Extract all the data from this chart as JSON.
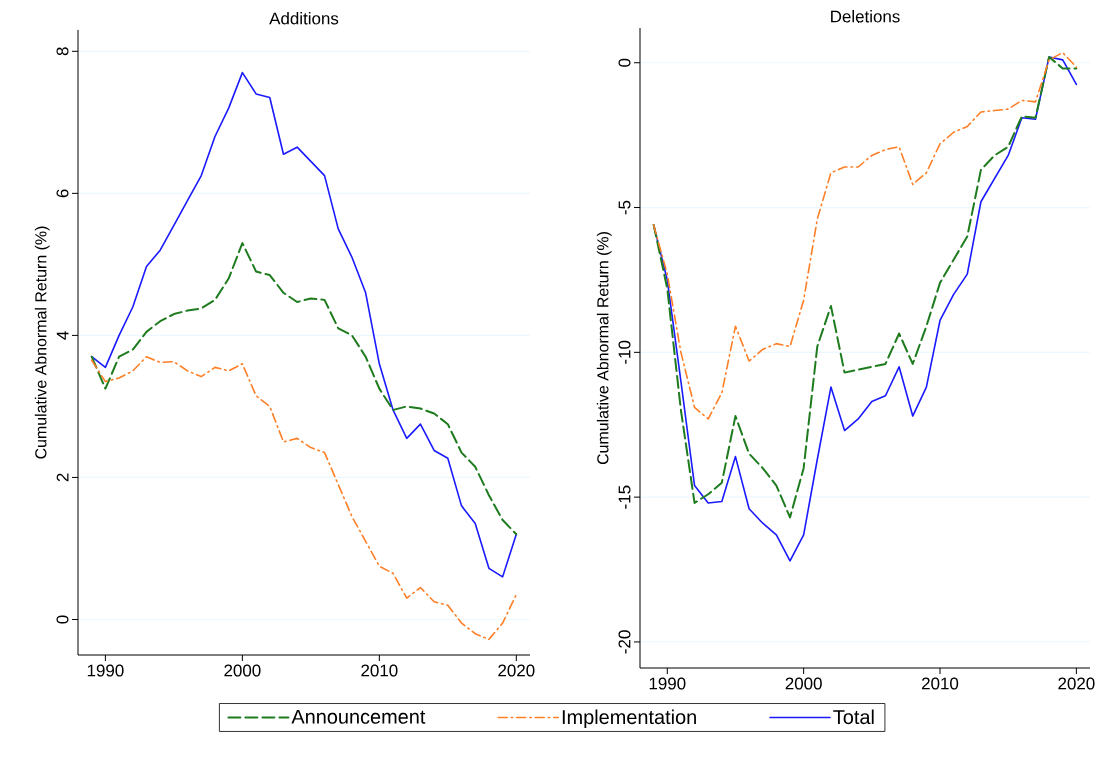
{
  "chart_data": [
    {
      "type": "line",
      "title": "Additions",
      "ylabel": "Cumulative Abnormal Return (%)",
      "x": [
        1989,
        1990,
        1991,
        1992,
        1993,
        1994,
        1995,
        1996,
        1997,
        1998,
        1999,
        2000,
        2001,
        2002,
        2003,
        2004,
        2005,
        2006,
        2007,
        2008,
        2009,
        2010,
        2011,
        2012,
        2013,
        2014,
        2015,
        2016,
        2017,
        2018,
        2019,
        2020
      ],
      "xlim": [
        1988,
        2021
      ],
      "xticks": [
        1990,
        2000,
        2010,
        2020
      ],
      "ylim": [
        -0.5,
        8.3
      ],
      "yticks": [
        0,
        2,
        4,
        6,
        8
      ],
      "grid": "y",
      "legend": "bottom",
      "series": [
        {
          "name": "Announcement",
          "color": "#1e7b1e",
          "line_style": "dashed",
          "values": [
            3.7,
            3.25,
            3.7,
            3.8,
            4.05,
            4.2,
            4.3,
            4.35,
            4.38,
            4.5,
            4.8,
            5.3,
            4.9,
            4.85,
            4.6,
            4.47,
            4.52,
            4.5,
            4.1,
            4.0,
            3.7,
            3.25,
            2.95,
            3.0,
            2.97,
            2.9,
            2.75,
            2.35,
            2.15,
            1.75,
            1.4,
            1.2
          ]
        },
        {
          "name": "Implementation",
          "color": "#ff7f27",
          "line_style": "dashdotted",
          "values": [
            3.65,
            3.35,
            3.4,
            3.5,
            3.7,
            3.62,
            3.63,
            3.5,
            3.42,
            3.55,
            3.5,
            3.6,
            3.15,
            3.0,
            2.5,
            2.55,
            2.42,
            2.35,
            1.9,
            1.45,
            1.1,
            0.75,
            0.65,
            0.3,
            0.45,
            0.25,
            0.2,
            -0.05,
            -0.2,
            -0.28,
            -0.05,
            0.35
          ]
        },
        {
          "name": "Total",
          "color": "#1a1aff",
          "line_style": "solid",
          "values": [
            3.7,
            3.55,
            4.0,
            4.4,
            4.97,
            5.2,
            5.55,
            5.9,
            6.25,
            6.8,
            7.2,
            7.7,
            7.4,
            7.35,
            6.55,
            6.65,
            6.45,
            6.25,
            5.5,
            5.1,
            4.6,
            3.6,
            2.95,
            2.55,
            2.75,
            2.38,
            2.27,
            1.6,
            1.35,
            0.72,
            0.6,
            1.2
          ]
        }
      ]
    },
    {
      "type": "line",
      "title": "Deletions",
      "ylabel": "Cumulative Abnormal Return (%)",
      "x": [
        1989,
        1990,
        1991,
        1992,
        1993,
        1994,
        1995,
        1996,
        1997,
        1998,
        1999,
        2000,
        2001,
        2002,
        2003,
        2004,
        2005,
        2006,
        2007,
        2008,
        2009,
        2010,
        2011,
        2012,
        2013,
        2014,
        2015,
        2016,
        2017,
        2018,
        2019,
        2020
      ],
      "xlim": [
        1988,
        2021
      ],
      "xticks": [
        1990,
        2000,
        2010,
        2020
      ],
      "ylim": [
        -20.9,
        1.2
      ],
      "yticks": [
        -20,
        -15,
        -10,
        -5,
        0
      ],
      "grid": "y",
      "series": [
        {
          "color": "#1e7b1e",
          "line_style": "dashed",
          "values": [
            -5.6,
            -7.8,
            -12,
            -15.2,
            -14.9,
            -14.5,
            -12.2,
            -13.5,
            -14,
            -14.6,
            -15.7,
            -14,
            -9.8,
            -8.4,
            -10.7,
            -10.6,
            -10.5,
            -10.4,
            -9.35,
            -10.4,
            -9.1,
            -7.6,
            -6.8,
            -6.0,
            -3.7,
            -3.2,
            -2.9,
            -1.85,
            -1.9,
            0.2,
            -0.2,
            -0.2
          ]
        },
        {
          "color": "#ff7f27",
          "line_style": "dashdotted",
          "values": [
            -5.6,
            -7.3,
            -10,
            -11.9,
            -12.3,
            -11.4,
            -9.1,
            -10.3,
            -9.9,
            -9.7,
            -9.8,
            -8.2,
            -5.4,
            -3.8,
            -3.6,
            -3.6,
            -3.2,
            -3.0,
            -2.9,
            -4.2,
            -3.8,
            -2.8,
            -2.4,
            -2.2,
            -1.7,
            -1.65,
            -1.6,
            -1.3,
            -1.35,
            0.1,
            0.35,
            -0.15
          ]
        },
        {
          "color": "#1a1aff",
          "line_style": "solid",
          "values": [
            -5.6,
            -7.5,
            -11,
            -14.6,
            -15.2,
            -15.15,
            -13.6,
            -15.4,
            -15.9,
            -16.3,
            -17.2,
            -16.3,
            -13.7,
            -11.2,
            -12.7,
            -12.3,
            -11.7,
            -11.5,
            -10.5,
            -12.2,
            -11.2,
            -8.9,
            -8,
            -7.3,
            -4.8,
            -4,
            -3.2,
            -1.9,
            -1.95,
            0.2,
            0.1,
            -0.75
          ]
        }
      ]
    }
  ]
}
